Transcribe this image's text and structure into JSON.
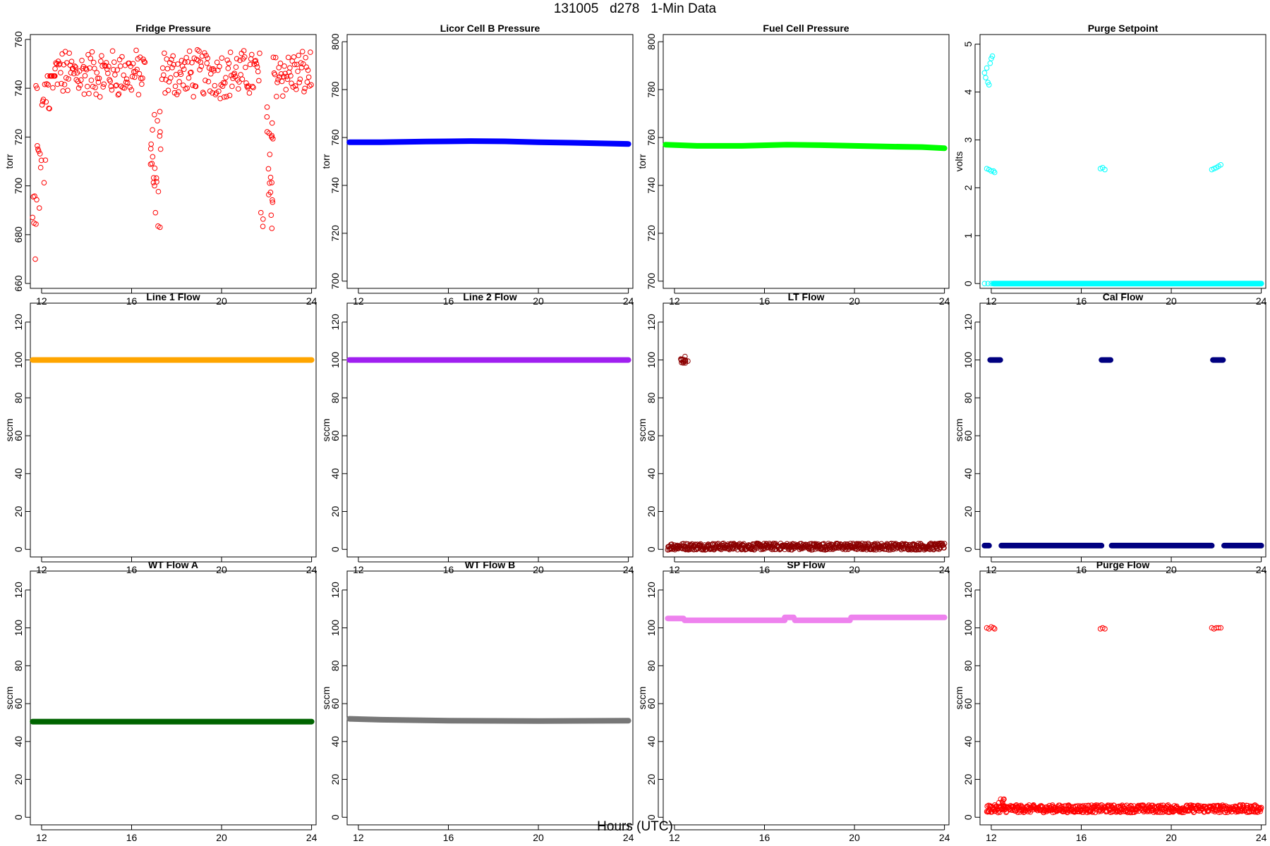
{
  "page": {
    "title": "131005   d278   1-Min Data",
    "x_axis_title": "Hours (UTC)"
  },
  "chart_data": [
    {
      "type": "scatter",
      "title": "Fridge Pressure",
      "ylabel": "torr",
      "color": "#ff0000",
      "marker": "open-circle",
      "xlim": [
        11.5,
        24.2
      ],
      "ylim": [
        658,
        762
      ],
      "xticks": [
        12,
        16,
        20,
        24
      ],
      "yticks": [
        660,
        680,
        700,
        720,
        740,
        760
      ],
      "pattern": "fridge",
      "grid": false
    },
    {
      "type": "scatter",
      "title": "Licor Cell B Pressure",
      "ylabel": "torr",
      "color": "#0000ff",
      "marker": "filled-line",
      "xlim": [
        11.5,
        24.2
      ],
      "ylim": [
        697,
        803
      ],
      "xticks": [
        12,
        16,
        20,
        24
      ],
      "yticks": [
        700,
        720,
        740,
        760,
        780,
        800
      ],
      "series": [
        {
          "x": [
            11.6,
            13,
            15,
            17,
            18.5,
            20,
            21.5,
            23,
            24
          ],
          "y": [
            758,
            758,
            758.3,
            758.5,
            758.4,
            758,
            757.8,
            757.5,
            757.3
          ]
        }
      ]
    },
    {
      "type": "scatter",
      "title": "Fuel Cell Pressure",
      "ylabel": "torr",
      "color": "#00ff00",
      "marker": "filled-line",
      "xlim": [
        11.5,
        24.2
      ],
      "ylim": [
        697,
        803
      ],
      "xticks": [
        12,
        16,
        20,
        24
      ],
      "yticks": [
        700,
        720,
        740,
        760,
        780,
        800
      ],
      "series": [
        {
          "x": [
            11.6,
            13,
            15,
            17,
            18.5,
            20,
            21.5,
            23,
            24
          ],
          "y": [
            757,
            756.5,
            756.5,
            757,
            756.8,
            756.5,
            756.2,
            756,
            755.5
          ]
        }
      ]
    },
    {
      "type": "scatter",
      "title": "Purge Setpoint",
      "ylabel": "volts",
      "color": "#00ffff",
      "marker": "open-circle",
      "xlim": [
        11.5,
        24.2
      ],
      "ylim": [
        -0.1,
        5.2
      ],
      "xticks": [
        12,
        16,
        20,
        24
      ],
      "yticks": [
        0,
        1,
        2,
        3,
        4,
        5
      ],
      "series": [
        {
          "x": [
            11.7,
            11.75,
            11.8,
            11.85,
            11.9,
            11.95,
            12.0,
            12.05
          ],
          "y": [
            4.4,
            4.3,
            4.5,
            4.2,
            4.15,
            4.6,
            4.7,
            4.75
          ]
        },
        {
          "x": [
            11.8,
            11.9,
            12.0,
            12.1,
            12.15
          ],
          "y": [
            2.4,
            2.38,
            2.35,
            2.35,
            2.32
          ]
        },
        {
          "x": [
            16.85,
            16.95,
            17.05
          ],
          "y": [
            2.4,
            2.42,
            2.38
          ]
        },
        {
          "x": [
            21.8,
            21.9,
            22.0,
            22.1,
            22.2
          ],
          "y": [
            2.38,
            2.4,
            2.42,
            2.45,
            2.48
          ]
        },
        {
          "x": [
            11.7,
            11.85,
            12.0
          ],
          "y": [
            0,
            0,
            0
          ]
        }
      ],
      "baseline": {
        "x0": 12.1,
        "x1": 24,
        "y": 0
      }
    },
    {
      "type": "scatter",
      "title": "Line 1 Flow",
      "ylabel": "sccm",
      "color": "#ffa500",
      "marker": "filled-line",
      "xlim": [
        11.5,
        24.2
      ],
      "ylim": [
        -4,
        130
      ],
      "xticks": [
        12,
        16,
        20,
        24
      ],
      "yticks": [
        0,
        20,
        40,
        60,
        80,
        100,
        120
      ],
      "series": [
        {
          "x": [
            11.6,
            24
          ],
          "y": [
            100,
            100
          ]
        }
      ]
    },
    {
      "type": "scatter",
      "title": "Line 2 Flow",
      "ylabel": "sccm",
      "color": "#a020f0",
      "marker": "filled-line",
      "xlim": [
        11.5,
        24.2
      ],
      "ylim": [
        -4,
        130
      ],
      "xticks": [
        12,
        16,
        20,
        24
      ],
      "yticks": [
        0,
        20,
        40,
        60,
        80,
        100,
        120
      ],
      "series": [
        {
          "x": [
            11.6,
            24
          ],
          "y": [
            100,
            100
          ]
        }
      ]
    },
    {
      "type": "scatter",
      "title": "LT Flow",
      "ylabel": "sccm",
      "color": "#8b0000",
      "marker": "open-circle",
      "xlim": [
        11.5,
        24.2
      ],
      "ylim": [
        -4,
        130
      ],
      "xticks": [
        12,
        16,
        20,
        24
      ],
      "yticks": [
        0,
        20,
        40,
        60,
        80,
        100,
        120
      ],
      "pattern": "lt"
    },
    {
      "type": "scatter",
      "title": "Cal Flow",
      "ylabel": "sccm",
      "color": "#000080",
      "marker": "filled-line",
      "xlim": [
        11.5,
        24.2
      ],
      "ylim": [
        -4,
        130
      ],
      "xticks": [
        12,
        16,
        20,
        24
      ],
      "yticks": [
        0,
        20,
        40,
        60,
        80,
        100,
        120
      ],
      "segments": [
        {
          "x0": 11.7,
          "x1": 11.9,
          "y": 2
        },
        {
          "x0": 11.95,
          "x1": 12.4,
          "y": 100
        },
        {
          "x0": 12.45,
          "x1": 16.9,
          "y": 2
        },
        {
          "x0": 16.9,
          "x1": 17.3,
          "y": 100
        },
        {
          "x0": 17.35,
          "x1": 21.8,
          "y": 2
        },
        {
          "x0": 21.85,
          "x1": 22.3,
          "y": 100
        },
        {
          "x0": 22.35,
          "x1": 24,
          "y": 2
        }
      ]
    },
    {
      "type": "scatter",
      "title": "WT Flow A",
      "ylabel": "sccm",
      "color": "#006400",
      "marker": "filled-line",
      "xlim": [
        11.5,
        24.2
      ],
      "ylim": [
        -4,
        130
      ],
      "xticks": [
        12,
        16,
        20,
        24
      ],
      "yticks": [
        0,
        20,
        40,
        60,
        80,
        100,
        120
      ],
      "series": [
        {
          "x": [
            11.6,
            24
          ],
          "y": [
            50.5,
            50.5
          ]
        }
      ]
    },
    {
      "type": "scatter",
      "title": "WT Flow B",
      "ylabel": "sccm",
      "color": "#777777",
      "marker": "filled-line",
      "xlim": [
        11.5,
        24.2
      ],
      "ylim": [
        -4,
        130
      ],
      "xticks": [
        12,
        16,
        20,
        24
      ],
      "yticks": [
        0,
        20,
        40,
        60,
        80,
        100,
        120
      ],
      "series": [
        {
          "x": [
            11.6,
            13,
            16,
            20,
            24
          ],
          "y": [
            52,
            51.5,
            51,
            50.8,
            51
          ]
        }
      ]
    },
    {
      "type": "scatter",
      "title": "SP Flow",
      "ylabel": "sccm",
      "color": "#ee82ee",
      "marker": "filled-line",
      "xlim": [
        11.5,
        24.2
      ],
      "ylim": [
        -4,
        130
      ],
      "xticks": [
        12,
        16,
        20,
        24
      ],
      "yticks": [
        0,
        20,
        40,
        60,
        80,
        100,
        120
      ],
      "segments": [
        {
          "x0": 11.7,
          "x1": 12.4,
          "y": 105
        },
        {
          "x0": 12.45,
          "x1": 16.9,
          "y": 104
        },
        {
          "x0": 16.9,
          "x1": 17.3,
          "y": 105.5
        },
        {
          "x0": 17.35,
          "x1": 19.8,
          "y": 104
        },
        {
          "x0": 19.85,
          "x1": 24,
          "y": 105.5
        }
      ]
    },
    {
      "type": "scatter",
      "title": "Purge Flow",
      "ylabel": "sccm",
      "color": "#ff0000",
      "marker": "open-circle",
      "xlim": [
        11.5,
        24.2
      ],
      "ylim": [
        -4,
        130
      ],
      "xticks": [
        12,
        16,
        20,
        24
      ],
      "yticks": [
        0,
        20,
        40,
        60,
        80,
        100,
        120
      ],
      "pattern": "purge"
    }
  ]
}
